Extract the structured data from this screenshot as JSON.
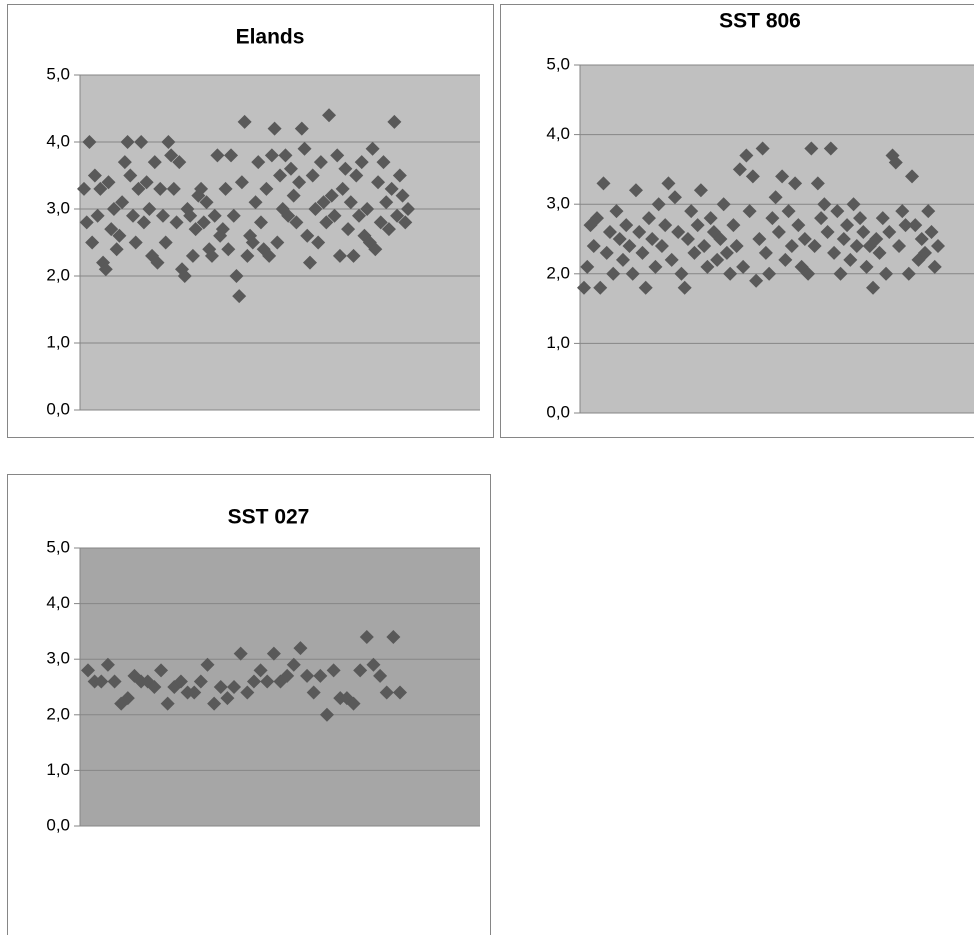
{
  "chart_data": [
    {
      "type": "scatter",
      "title": "Elands",
      "color": "#595959",
      "plot_color": "#c0c0c0",
      "ylim": [
        0,
        5
      ],
      "yticks": [
        {
          "value": 0,
          "label": "0,0"
        },
        {
          "value": 1,
          "label": "1,0"
        },
        {
          "value": 2,
          "label": "2,0"
        },
        {
          "value": 3,
          "label": "3,0"
        },
        {
          "value": 4,
          "label": "4,0"
        },
        {
          "value": 5,
          "label": "5,0"
        }
      ],
      "grid": true,
      "values": [
        3.3,
        2.8,
        4.0,
        2.5,
        3.5,
        2.9,
        3.3,
        2.2,
        2.1,
        3.4,
        2.7,
        3.0,
        2.4,
        2.6,
        3.1,
        3.7,
        4.0,
        3.5,
        2.9,
        2.5,
        3.3,
        4.0,
        2.8,
        3.4,
        3.0,
        2.3,
        3.7,
        2.2,
        3.3,
        2.9,
        2.5,
        4.0,
        3.8,
        3.3,
        2.8,
        3.7,
        2.1,
        2.0,
        3.0,
        2.9,
        2.3,
        2.7,
        3.2,
        3.3,
        2.8,
        3.1,
        2.4,
        2.3,
        2.9,
        3.8,
        2.6,
        2.7,
        3.3,
        2.4,
        3.8,
        2.9,
        2.0,
        1.7,
        3.4,
        4.3,
        2.3,
        2.6,
        2.5,
        3.1,
        3.7,
        2.8,
        2.4,
        3.3,
        2.3,
        3.8,
        4.2,
        2.5,
        3.5,
        3.0,
        3.8,
        2.9,
        3.6,
        3.2,
        2.8,
        3.4,
        4.2,
        3.9,
        2.6,
        2.2,
        3.5,
        3.0,
        2.5,
        3.7,
        3.1,
        2.8,
        4.4,
        3.2,
        2.9,
        3.8,
        2.3,
        3.3,
        3.6,
        2.7,
        3.1,
        2.3,
        3.5,
        2.9,
        3.7,
        2.6,
        3.0,
        2.5,
        3.9,
        2.4,
        3.4,
        2.8,
        3.7,
        3.1,
        2.7,
        3.3,
        4.3,
        2.9,
        3.5,
        3.2,
        2.8,
        3.0
      ]
    },
    {
      "type": "scatter",
      "title": "SST 806",
      "color": "#595959",
      "plot_color": "#c0c0c0",
      "ylim": [
        0,
        5
      ],
      "yticks": [
        {
          "value": 0,
          "label": "0,0"
        },
        {
          "value": 1,
          "label": "1,0"
        },
        {
          "value": 2,
          "label": "2,0"
        },
        {
          "value": 3,
          "label": "3,0"
        },
        {
          "value": 4,
          "label": "4,0"
        },
        {
          "value": 5,
          "label": "5,0"
        }
      ],
      "grid": true,
      "values": [
        1.8,
        2.1,
        2.7,
        2.4,
        2.8,
        1.8,
        3.3,
        2.3,
        2.6,
        2.0,
        2.9,
        2.5,
        2.2,
        2.7,
        2.4,
        2.0,
        3.2,
        2.6,
        2.3,
        1.8,
        2.8,
        2.5,
        2.1,
        3.0,
        2.4,
        2.7,
        3.3,
        2.2,
        3.1,
        2.6,
        2.0,
        1.8,
        2.5,
        2.9,
        2.3,
        2.7,
        3.2,
        2.4,
        2.1,
        2.8,
        2.6,
        2.2,
        2.5,
        3.0,
        2.3,
        2.0,
        2.7,
        2.4,
        3.5,
        2.1,
        3.7,
        2.9,
        3.4,
        1.9,
        2.5,
        3.8,
        2.3,
        2.0,
        2.8,
        3.1,
        2.6,
        3.4,
        2.2,
        2.9,
        2.4,
        3.3,
        2.7,
        2.1,
        2.5,
        2.0,
        3.8,
        2.4,
        3.3,
        2.8,
        3.0,
        2.6,
        3.8,
        2.3,
        2.9,
        2.0,
        2.5,
        2.7,
        2.2,
        3.0,
        2.4,
        2.8,
        2.6,
        2.1,
        2.4,
        1.8,
        2.5,
        2.3,
        2.8,
        2.0,
        2.6,
        3.7,
        3.6,
        2.4,
        2.9,
        2.7,
        2.0,
        3.4,
        2.7,
        2.2,
        2.5,
        2.3,
        2.9,
        2.6,
        2.1,
        2.4
      ]
    },
    {
      "type": "scatter",
      "title": "SST 027",
      "color": "#595959",
      "plot_color": "#a6a6a6",
      "ylim": [
        0,
        5
      ],
      "yticks": [
        {
          "value": 0,
          "label": "0,0"
        },
        {
          "value": 1,
          "label": "1,0"
        },
        {
          "value": 2,
          "label": "2,0"
        },
        {
          "value": 3,
          "label": "3,0"
        },
        {
          "value": 4,
          "label": "4,0"
        },
        {
          "value": 5,
          "label": "5,0"
        }
      ],
      "grid": true,
      "values": [
        2.8,
        2.6,
        2.6,
        2.9,
        2.6,
        2.2,
        2.3,
        2.7,
        2.6,
        2.6,
        2.5,
        2.8,
        2.2,
        2.5,
        2.6,
        2.4,
        2.4,
        2.6,
        2.9,
        2.2,
        2.5,
        2.3,
        2.5,
        3.1,
        2.4,
        2.6,
        2.8,
        2.6,
        3.1,
        2.6,
        2.7,
        2.9,
        3.2,
        2.7,
        2.4,
        2.7,
        2.0,
        2.8,
        2.3,
        2.3,
        2.2,
        2.8,
        3.4,
        2.9,
        2.7,
        2.4,
        3.4,
        2.4
      ]
    }
  ]
}
